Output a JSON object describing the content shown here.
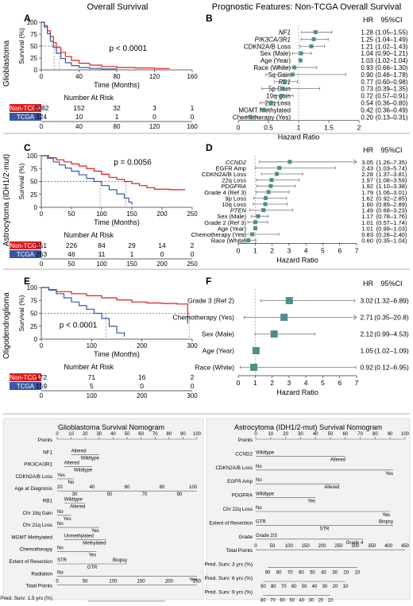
{
  "headers": {
    "left": "Overall Survival",
    "right": "Prognostic Features: Non-TCGA Overall Survival"
  },
  "panel_letters": [
    "A",
    "B",
    "C",
    "D",
    "E",
    "F",
    "G",
    "H"
  ],
  "colors": {
    "red": "#e31a1c",
    "blue": "#3a56a5",
    "box": "#4f8d8a",
    "line": "#777777"
  },
  "km_common": {
    "ylabel": "Survival (%)",
    "xlabel": "Time (Months)",
    "risk_title": "Number At Risk",
    "yticks": [
      "0",
      "25",
      "50",
      "75",
      "100"
    ]
  },
  "A": {
    "row_label": "Glioblastoma",
    "pvalue": "p < 0.0001",
    "xticks": [
      "0",
      "40",
      "80",
      "120",
      "160"
    ],
    "risk": [
      {
        "name": "Non-TCGA",
        "values": [
          "1082",
          "152",
          "32",
          "3",
          "1"
        ]
      },
      {
        "name": "TCGA",
        "values": [
          "324",
          "10",
          "1",
          "0",
          "0"
        ]
      }
    ]
  },
  "C": {
    "row_label": "Astrocytoma (IDH1/2-mut)",
    "pvalue": "p = 0.0056",
    "xticks": [
      "0",
      "50",
      "100",
      "150",
      "200",
      "250"
    ],
    "risk": [
      {
        "name": "Non-TCGA",
        "values": [
          "351",
          "226",
          "84",
          "29",
          "14",
          "2"
        ]
      },
      {
        "name": "TCGA",
        "values": [
          "263",
          "46",
          "11",
          "1",
          "0",
          "0"
        ]
      }
    ]
  },
  "E": {
    "row_label": "Oligodendroglioma",
    "pvalue": "p < 0.0001",
    "xticks": [
      "0",
      "100",
      "200",
      "300"
    ],
    "risk": [
      {
        "name": "Non-TCGA",
        "values": [
          "172",
          "71",
          "16",
          "2"
        ]
      },
      {
        "name": "TCGA",
        "values": [
          "159",
          "5",
          "0",
          "0"
        ]
      }
    ]
  },
  "B": {
    "hr_head": "HR",
    "ci_head": "95%CI",
    "xlabel": "Hazard Ratio",
    "xticks": [
      "0",
      "0.5",
      "1",
      "1.5",
      "2"
    ],
    "rows": [
      {
        "label": "NF1",
        "hr": "1.28",
        "ci": "(1.05–1.55)"
      },
      {
        "label": "PIK3CA/3R1",
        "hr": "1.25",
        "ci": "(1.04–1.49)"
      },
      {
        "label": "CDKN2A/B Loss",
        "hr": "1.21",
        "ci": "(1.02–1.43)"
      },
      {
        "label": "Sex (Male)",
        "hr": "1.04",
        "ci": "(0.90–1.21)"
      },
      {
        "label": "Age (Year)",
        "hr": "1.03",
        "ci": "(1.02–1.04)"
      },
      {
        "label": "Race (White)",
        "hr": "0.93",
        "ci": "(0.66–1.30)"
      },
      {
        "label": "5q Gain",
        "hr": "0.90",
        "ci": "(0.46–1.78)"
      },
      {
        "label": "RB1",
        "hr": "0.77",
        "ci": "(0.60–0.98)"
      },
      {
        "label": "5p Gain",
        "hr": "0.73",
        "ci": "(0.39–1.35)"
      },
      {
        "label": "19q gain",
        "hr": "0.72",
        "ci": "(0.57–0.91)"
      },
      {
        "label": "21q Loss",
        "hr": "0.54",
        "ci": "(0.36–0.80)"
      },
      {
        "label": "MGMT Methylated",
        "hr": "0.42",
        "ci": "(0.36–0.49)"
      },
      {
        "label": "Chemotherapy (Yes)",
        "hr": "0.20",
        "ci": "(0.13–0.31)"
      }
    ]
  },
  "D": {
    "hr_head": "HR",
    "ci_head": "95%CI",
    "xlabel": "Hazard Ratio",
    "xticks": [
      "0",
      "1",
      "2",
      "3",
      "4",
      "5",
      "6",
      "7"
    ],
    "rows": [
      {
        "label": "CCND2",
        "hr": "3.05",
        "ci": "(1.26–7.35)"
      },
      {
        "label": "EGFR Amp",
        "hr": "2.43",
        "ci": "(1.03–5.74)"
      },
      {
        "label": "CDKN2A/B Loss",
        "hr": "2.28",
        "ci": "(1.37–3.81)"
      },
      {
        "label": "22q Loss",
        "hr": "1.97",
        "ci": "(1.08–3.59)"
      },
      {
        "label": "PDGFRA",
        "hr": "1.92",
        "ci": "(1.10–3.38)"
      },
      {
        "label": "Grade 4 (Ref 3)",
        "hr": "1.79",
        "ci": "(1.06–3.01)"
      },
      {
        "label": "9p Loss",
        "hr": "1.62",
        "ci": "(0.92–2.85)"
      },
      {
        "label": "10q Loss",
        "hr": "1.60",
        "ci": "(0.89–2.89)"
      },
      {
        "label": "PTEN",
        "hr": "1.49",
        "ci": "(0.68–3.23)"
      },
      {
        "label": "Sex (Male)",
        "hr": "1.17",
        "ci": "(0.78–1.76)"
      },
      {
        "label": "Grade 2 (Ref 3)",
        "hr": "1.01",
        "ci": "(0.57–1.74)"
      },
      {
        "label": "Age (Year)",
        "hr": "1.01",
        "ci": "(0.99–1.03)"
      },
      {
        "label": "Chemotherapy (Yes)",
        "hr": "0.83",
        "ci": "(0.28–2.40)"
      },
      {
        "label": "Race (White)",
        "hr": "0.60",
        "ci": "(0.35–1.04)"
      }
    ]
  },
  "F": {
    "hr_head": "HR",
    "ci_head": "95%CI",
    "xlabel": "Hazard Ratio",
    "xticks": [
      "0",
      "1",
      "2",
      "3",
      "4",
      "5",
      "6",
      "7"
    ],
    "rows": [
      {
        "label": "Grade 3 (Ref 2)",
        "hr": "3.02",
        "ci": "(1.32–6.89)"
      },
      {
        "label": "Chemotherapy (Yes)",
        "hr": "2.71",
        "ci": "(0.35–20.8)"
      },
      {
        "label": "Sex (Male)",
        "hr": "2.12",
        "ci": "(0.99–4.53)"
      },
      {
        "label": "Age (Year)",
        "hr": "1.05",
        "ci": "(1.02–1.09)"
      },
      {
        "label": "Race (White)",
        "hr": "0.92",
        "ci": "(0.12–6.95)"
      }
    ]
  },
  "G": {
    "title": "Glioblastoma Survival Nomogram",
    "points_label": "Points",
    "points_ticks": [
      "0",
      "10",
      "20",
      "30",
      "40",
      "50",
      "60",
      "70",
      "80",
      "90",
      "100"
    ],
    "vars": [
      {
        "name": "NF1",
        "labels": [
          "Altered",
          "Wildtype"
        ]
      },
      {
        "name": "PIK3CA/3R1",
        "labels": [
          "Altered",
          "Wildtype"
        ]
      },
      {
        "name": "CDKN2A/B Loss",
        "labels": [
          "Yes",
          "No"
        ]
      },
      {
        "name": "Age at Diagnosis",
        "labels": [
          "20",
          "30",
          "40",
          "50",
          "60",
          "70",
          "80",
          "90",
          "100"
        ]
      },
      {
        "name": "RB1",
        "labels": [
          "Wildtype",
          "Altered"
        ]
      },
      {
        "name": "Chr 19q Gain",
        "labels": [
          "No",
          "Yes"
        ]
      },
      {
        "name": "Chr 21q Loss",
        "labels": [
          "No",
          "Yes"
        ]
      },
      {
        "name": "MGMT Methylated",
        "labels": [
          "Unmethylated",
          "Methylated"
        ]
      },
      {
        "name": "Chemotherapy",
        "labels": [
          "No",
          "Yes"
        ]
      },
      {
        "name": "Extent of Resection",
        "labels": [
          "STR",
          "GTR",
          "Biopsy"
        ]
      },
      {
        "name": "Radiation",
        "labels": [
          "No",
          "Yes"
        ]
      }
    ],
    "total_label": "Total Points",
    "total_ticks": [
      "0",
      "50",
      "100",
      "150",
      "200",
      "250"
    ],
    "pred": [
      {
        "name": "Pred. Surv: 1.5 yrs (%)",
        "ticks": [
          "90",
          "80",
          "70",
          "60",
          "50",
          "40",
          "30",
          "20",
          "10"
        ]
      },
      {
        "name": "Pred. Surv: 2 yrs (%)",
        "ticks": [
          "90",
          "80",
          "70",
          "60",
          "50",
          "40",
          "30",
          "20",
          "10"
        ]
      },
      {
        "name": "Pred. Surv: 2.5 yrs (%)",
        "ticks": [
          "90",
          "80",
          "70",
          "60",
          "50",
          "40",
          "30",
          "20",
          "10"
        ]
      }
    ]
  },
  "H": {
    "title": "Astrocytoma (IDH1/2-mut) Survival Nomogram",
    "points_label": "Points",
    "points_ticks": [
      "0",
      "10",
      "20",
      "30",
      "40",
      "50",
      "60",
      "70",
      "80",
      "90",
      "100"
    ],
    "vars": [
      {
        "name": "CCND2",
        "labels": [
          "Wildtype",
          "Altered"
        ]
      },
      {
        "name": "CDKN2A/B Loss",
        "labels": [
          "No",
          "Yes"
        ]
      },
      {
        "name": "EGFR Amp",
        "labels": [
          "No",
          "Altered"
        ]
      },
      {
        "name": "PDGFRA",
        "labels": [
          "Wildtype",
          "Yes"
        ]
      },
      {
        "name": "Chr 22q Loss",
        "labels": [
          "No",
          "Yes"
        ]
      },
      {
        "name": "Extent of Resection",
        "labels": [
          "GTR",
          "STR",
          "Biopsy"
        ]
      },
      {
        "name": "Grade",
        "labels": [
          "Grade 2/3",
          "Grade 4"
        ]
      }
    ],
    "total_label": "Total Points",
    "total_ticks": [
      "0",
      "50",
      "100",
      "150",
      "200",
      "250",
      "300",
      "350",
      "400",
      "450"
    ],
    "pred": [
      {
        "name": "Pred. Surv: 3 yrs (%)",
        "ticks": [
          "90",
          "80",
          "70",
          "60",
          "50",
          "40",
          "30",
          "20",
          "10"
        ]
      },
      {
        "name": "Pred. Surv: 6 yrs (%)",
        "ticks": [
          "90",
          "80",
          "70",
          "60",
          "50",
          "40",
          "30",
          "20",
          "10"
        ]
      },
      {
        "name": "Pred. Surv: 9 yrs (%)",
        "ticks": [
          "80",
          "70",
          "60",
          "50",
          "40",
          "30",
          "20",
          "10"
        ]
      }
    ]
  }
}
